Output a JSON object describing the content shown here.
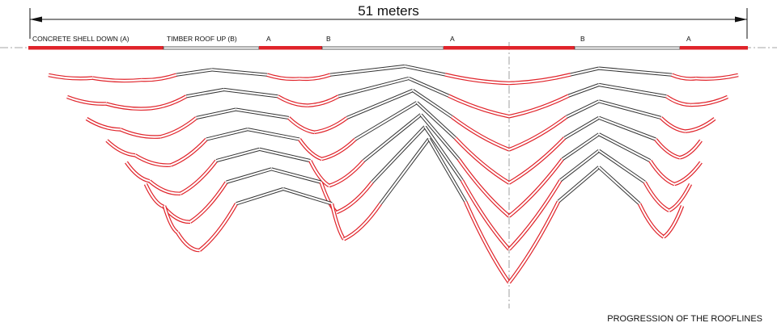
{
  "dimension": {
    "label": "51 meters"
  },
  "legend": {
    "segments": [
      {
        "label": "CONCRETE SHELL DOWN (A)",
        "type": "A"
      },
      {
        "label": "TIMBER ROOF UP (B)",
        "type": "B"
      },
      {
        "label": "A",
        "type": "A"
      },
      {
        "label": "B",
        "type": "B"
      },
      {
        "label": "A",
        "type": "A"
      },
      {
        "label": "B",
        "type": "B"
      },
      {
        "label": "A",
        "type": "A"
      }
    ]
  },
  "caption": "PROGRESSION OF THE ROOFLINES",
  "colors": {
    "concrete": "#e0232a",
    "timber": "#333333",
    "text": "#111111"
  }
}
